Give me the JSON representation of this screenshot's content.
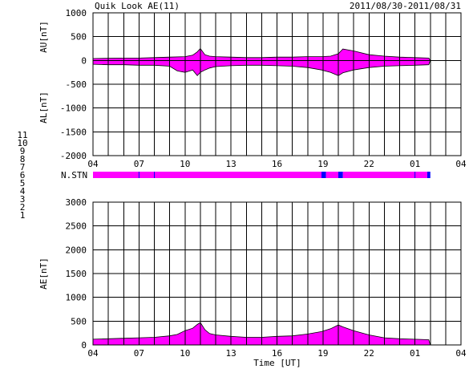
{
  "title": "Quik Look AE(11)",
  "date_range": "2011/08/30-2011/08/31",
  "xlabel": "Time [UT]",
  "colors": {
    "fill_main": "#ff00ff",
    "fill_alt": "#0000ff",
    "line": "#000000",
    "grid": "#000000"
  },
  "station_legend": [
    {
      "label": "11",
      "color": "#00ffff"
    },
    {
      "label": "10",
      "color": "#ff00ff"
    },
    {
      "label": "9",
      "color": "#0000ff"
    },
    {
      "label": "8",
      "color": "#ffff00"
    },
    {
      "label": "7",
      "color": "#cccc00"
    },
    {
      "label": "6",
      "color": "#ff0000"
    },
    {
      "label": "5",
      "color": "#cccccc"
    },
    {
      "label": "4",
      "color": "#888888"
    },
    {
      "label": "3",
      "color": "#008888"
    },
    {
      "label": "2",
      "color": "#880088"
    },
    {
      "label": "1",
      "color": "#0000cc"
    }
  ],
  "station_bar": {
    "label": "N.STN",
    "segments": [
      {
        "from": 4.0,
        "to": 18.9,
        "value": 10
      },
      {
        "from": 18.9,
        "to": 19.2,
        "value": 9
      },
      {
        "from": 19.2,
        "to": 20.0,
        "value": 10
      },
      {
        "from": 20.0,
        "to": 20.3,
        "value": 9
      },
      {
        "from": 20.3,
        "to": 25.8,
        "value": 10
      },
      {
        "from": 25.8,
        "to": 26.0,
        "value": 9
      }
    ]
  },
  "chart_data": [
    {
      "type": "area",
      "panel": "AU/AL",
      "ylabel_upper": "AU[nT]",
      "ylabel_lower": "AL[nT]",
      "ylim": [
        -2000,
        1000
      ],
      "yticks": [
        1000,
        500,
        0,
        -500,
        -1000,
        -1500,
        -2000
      ],
      "xlim": [
        4,
        28
      ],
      "xticks": [
        "04",
        "07",
        "10",
        "13",
        "16",
        "19",
        "22",
        "01",
        "04"
      ],
      "series": [
        {
          "values_key": "AU",
          "x": [
            4,
            5,
            6,
            7,
            8,
            9,
            10,
            10.5,
            10.8,
            11,
            11.3,
            11.6,
            12,
            13,
            14,
            15,
            16,
            17,
            18,
            18.9,
            19.5,
            20,
            20.3,
            21,
            22,
            23,
            24,
            25,
            25.9,
            26
          ],
          "values": [
            40,
            45,
            50,
            50,
            60,
            70,
            80,
            110,
            180,
            250,
            120,
            90,
            80,
            70,
            60,
            60,
            70,
            70,
            80,
            80,
            90,
            140,
            240,
            200,
            120,
            90,
            70,
            60,
            50,
            0
          ]
        },
        {
          "values_key": "AL",
          "x": [
            4,
            5,
            6,
            7,
            8,
            9,
            9.5,
            10,
            10.5,
            10.8,
            11,
            11.3,
            11.6,
            12,
            13,
            14,
            15,
            16,
            17,
            18,
            18.9,
            19.5,
            20,
            20.3,
            21,
            22,
            23,
            24,
            25,
            25.9,
            26
          ],
          "values": [
            -80,
            -90,
            -90,
            -100,
            -100,
            -120,
            -220,
            -250,
            -200,
            -320,
            -250,
            -200,
            -160,
            -130,
            -110,
            -100,
            -100,
            -110,
            -120,
            -150,
            -200,
            -250,
            -320,
            -260,
            -200,
            -150,
            -120,
            -110,
            -100,
            -90,
            0
          ]
        }
      ]
    },
    {
      "type": "area",
      "panel": "AE",
      "ylabel": "AE[nT]",
      "ylim": [
        0,
        3000
      ],
      "yticks": [
        3000,
        2500,
        2000,
        1500,
        1000,
        500,
        0
      ],
      "xlim": [
        4,
        28
      ],
      "xticks": [
        "04",
        "07",
        "10",
        "13",
        "16",
        "19",
        "22",
        "01",
        "04"
      ],
      "series": [
        {
          "values_key": "AE",
          "x": [
            4,
            5,
            6,
            7,
            8,
            9,
            9.5,
            10,
            10.5,
            10.8,
            11,
            11.3,
            11.6,
            12,
            13,
            14,
            15,
            16,
            17,
            18,
            18.9,
            19.5,
            20,
            20.3,
            21,
            22,
            23,
            24,
            25,
            25.9,
            26
          ],
          "values": [
            120,
            130,
            140,
            150,
            160,
            190,
            220,
            300,
            350,
            430,
            470,
            320,
            240,
            210,
            180,
            160,
            160,
            180,
            190,
            230,
            280,
            340,
            420,
            380,
            300,
            210,
            150,
            130,
            120,
            110,
            0
          ]
        }
      ]
    }
  ]
}
